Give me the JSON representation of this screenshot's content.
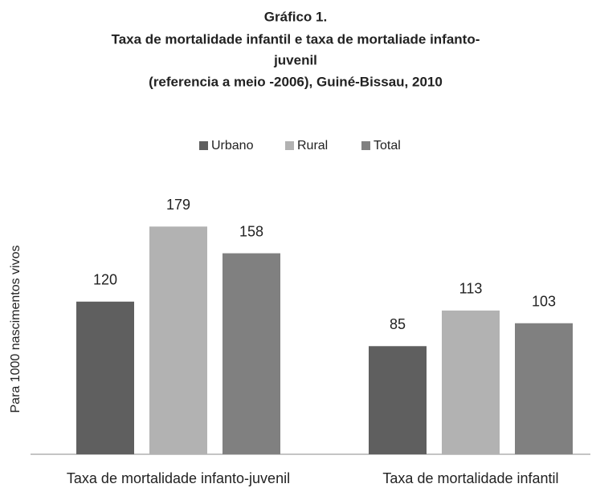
{
  "chart_data": {
    "type": "bar",
    "title": [
      "Gráfico 1.",
      "Taxa de mortalidade infantil e taxa de mortaliade infanto-",
      "juvenil",
      "(referencia a meio -2006), Guiné-Bissau, 2010"
    ],
    "y_label": "Para 1000 nascimentos vivos",
    "categories": [
      "Taxa de mortalidade infanto-juvenil",
      "Taxa de mortalidade infantil"
    ],
    "series": [
      {
        "name": "Urbano",
        "color": "#5f5f5f",
        "values": [
          120,
          85
        ]
      },
      {
        "name": "Rural",
        "color": "#b2b2b2",
        "values": [
          179,
          113
        ]
      },
      {
        "name": "Total",
        "color": "#808080",
        "values": [
          158,
          103
        ]
      }
    ],
    "ylim": [
      0,
      200
    ],
    "legend": "top",
    "grid": false
  }
}
